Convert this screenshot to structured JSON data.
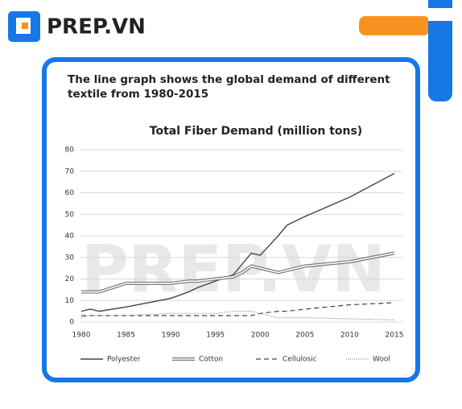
{
  "brand": "PREP.VN",
  "watermark": "PREP.VN",
  "chart_data": {
    "type": "line",
    "caption": "The line graph shows the global demand of different textile from 1980-2015",
    "title": "Total Fiber Demand (million tons)",
    "x": [
      1980,
      1981,
      1982,
      1985,
      1990,
      1992,
      1993,
      1995,
      1997,
      1998,
      1999,
      2000,
      2002,
      2003,
      2005,
      2010,
      2015
    ],
    "xlim": [
      1980,
      2015
    ],
    "xticks": [
      1980,
      1985,
      1990,
      1995,
      2000,
      2005,
      2010,
      2015
    ],
    "ylim": [
      0,
      80
    ],
    "yticks": [
      0,
      10,
      20,
      30,
      40,
      50,
      60,
      70,
      80
    ],
    "grid": true,
    "series": [
      {
        "name": "Polyester",
        "color": "#444444",
        "style": "solid",
        "values": [
          5,
          6,
          5,
          7,
          11,
          14,
          16,
          19,
          22,
          27,
          32,
          31,
          40,
          45,
          49,
          58,
          69
        ]
      },
      {
        "name": "Cotton",
        "color": "#777777",
        "style": "double",
        "values": [
          14,
          14,
          14,
          18,
          18,
          19,
          19,
          20,
          21,
          23,
          26,
          25,
          23,
          24,
          26,
          28,
          32
        ]
      },
      {
        "name": "Cellulosic",
        "color": "#444444",
        "style": "dashed",
        "values": [
          3,
          3,
          3,
          3,
          3,
          3,
          3,
          3,
          3,
          3,
          3,
          4,
          5,
          5,
          6,
          8,
          9
        ]
      },
      {
        "name": "Wool",
        "color": "#888888",
        "style": "dotted",
        "values": [
          2,
          3,
          3,
          3,
          4,
          4,
          4,
          4,
          5,
          5,
          5,
          4,
          2,
          2,
          2,
          1.5,
          1
        ]
      }
    ]
  }
}
